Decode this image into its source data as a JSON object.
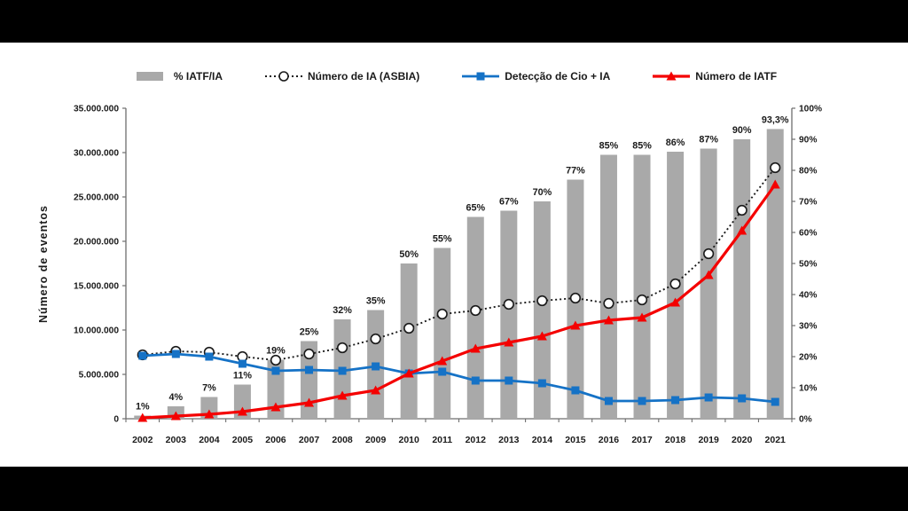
{
  "frame": {
    "top_band_color": "#000000",
    "bottom_band_color": "#000000",
    "background_color": "#ffffff"
  },
  "chart_data": {
    "type": "bar",
    "combo": "bars + 3 line series",
    "title": "",
    "categories": [
      "2002",
      "2003",
      "2004",
      "2005",
      "2006",
      "2007",
      "2008",
      "2009",
      "2010",
      "2011",
      "2012",
      "2013",
      "2014",
      "2015",
      "2016",
      "2017",
      "2018",
      "2019",
      "2020",
      "2021"
    ],
    "left_axis": {
      "label": "Número de eventos",
      "ticks": [
        "0",
        "5.000.000",
        "10.000.000",
        "15.000.000",
        "20.000.000",
        "25.000.000",
        "30.000.000",
        "35.000.000"
      ],
      "ylim": [
        0,
        35000000
      ]
    },
    "right_axis": {
      "label": "",
      "ticks": [
        "0%",
        "10%",
        "20%",
        "30%",
        "40%",
        "50%",
        "60%",
        "70%",
        "80%",
        "90%",
        "100%"
      ],
      "ylim": [
        0,
        100
      ]
    },
    "grid": false,
    "legend_position": "top",
    "series": [
      {
        "name": "% IATF/IA",
        "type": "bar",
        "axis": "right",
        "color": "#a9a9a9",
        "values_percent": [
          1,
          4,
          7,
          11,
          19,
          25,
          32,
          35,
          50,
          55,
          65,
          67,
          70,
          77,
          85,
          85,
          86,
          87,
          90,
          93.3
        ],
        "labels": [
          "1%",
          "4%",
          "7%",
          "11%",
          "19%",
          "25%",
          "32%",
          "35%",
          "50%",
          "55%",
          "65%",
          "67%",
          "70%",
          "77%",
          "85%",
          "85%",
          "86%",
          "87%",
          "90%",
          "93,3%"
        ]
      },
      {
        "name": "Número de IA (ASBIA)",
        "type": "line",
        "axis": "left",
        "style": "dotted",
        "marker": "circle-open",
        "color": "#1a1a1a",
        "values_millions": [
          7.2,
          7.6,
          7.5,
          7.0,
          6.6,
          7.3,
          8.0,
          9.0,
          10.2,
          11.8,
          12.2,
          12.9,
          13.3,
          13.6,
          13.0,
          13.4,
          15.2,
          18.6,
          23.5,
          28.3
        ]
      },
      {
        "name": "Detecção de Cio + IA",
        "type": "line",
        "axis": "left",
        "style": "solid",
        "marker": "square",
        "color": "#1572c6",
        "values_millions": [
          7.1,
          7.3,
          7.0,
          6.2,
          5.4,
          5.5,
          5.4,
          5.9,
          5.1,
          5.3,
          4.3,
          4.3,
          4.0,
          3.2,
          2.0,
          2.0,
          2.1,
          2.4,
          2.3,
          1.9
        ]
      },
      {
        "name": "Número de IATF",
        "type": "line",
        "axis": "left",
        "style": "solid",
        "marker": "triangle",
        "color": "#f40000",
        "values_millions": [
          0.1,
          0.3,
          0.5,
          0.8,
          1.3,
          1.8,
          2.6,
          3.2,
          5.1,
          6.5,
          7.9,
          8.6,
          9.3,
          10.5,
          11.1,
          11.4,
          13.1,
          16.2,
          21.2,
          26.4
        ]
      }
    ]
  }
}
